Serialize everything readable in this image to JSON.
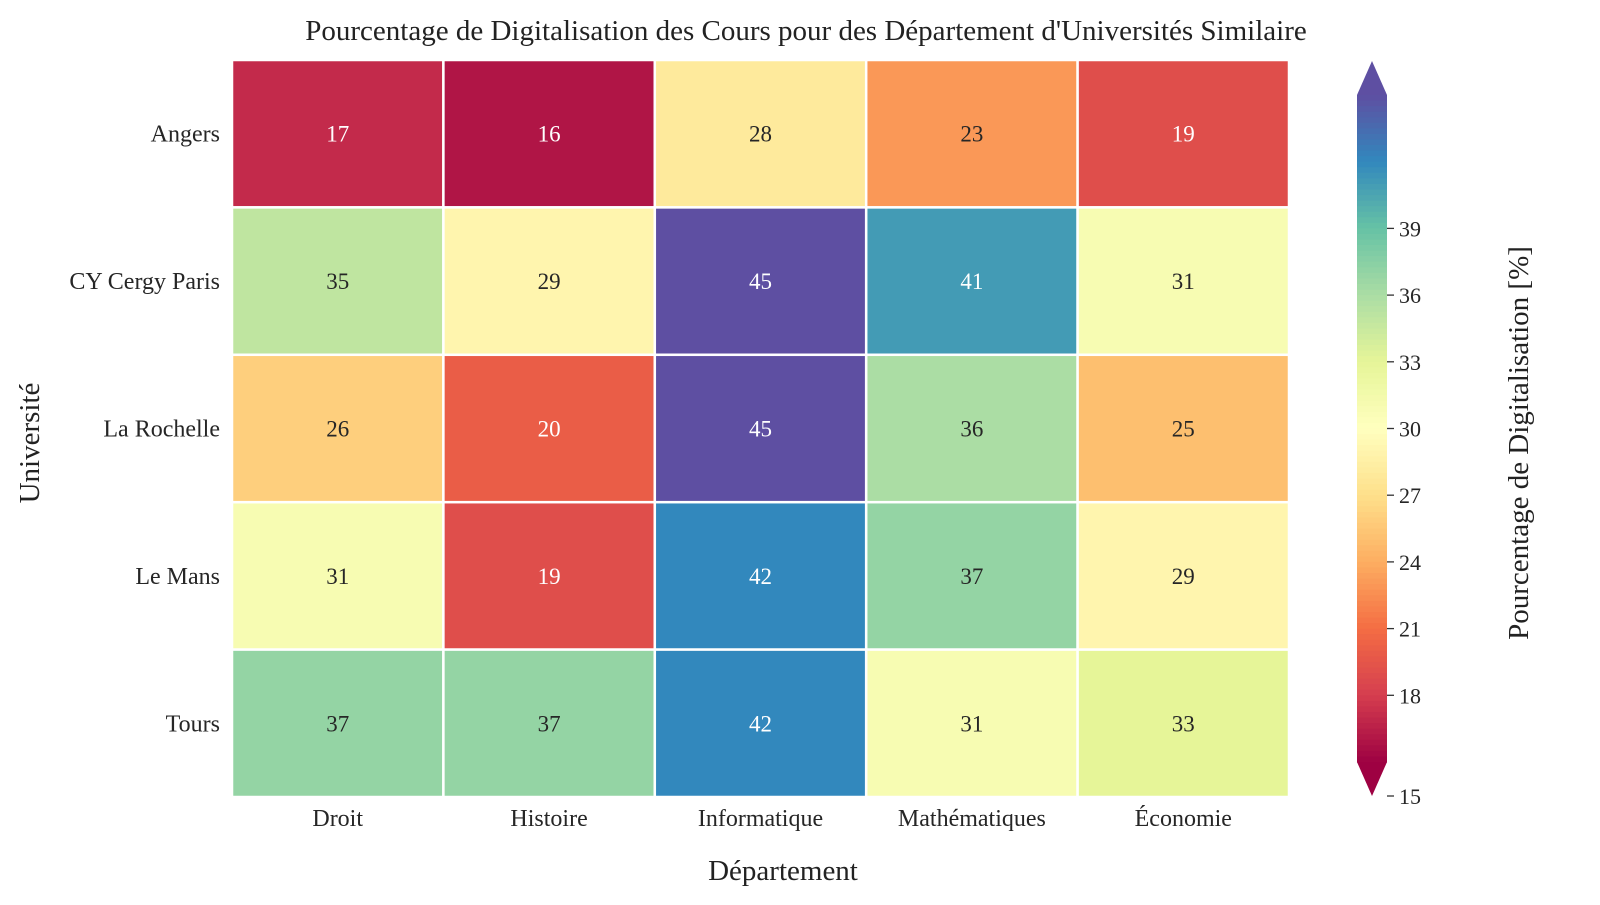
{
  "chart_data": {
    "type": "heatmap",
    "title": "Pourcentage de Digitalisation des Cours pour des Département d'Universités Similaire",
    "xlabel": "Département",
    "ylabel": "Université",
    "x_categories": [
      "Droit",
      "Histoire",
      "Informatique",
      "Mathématiques",
      "Économie"
    ],
    "y_categories": [
      "Angers",
      "CY Cergy Paris",
      "La Rochelle",
      "Le Mans",
      "Tours"
    ],
    "values": [
      [
        17,
        16,
        28,
        23,
        19
      ],
      [
        35,
        29,
        45,
        41,
        31
      ],
      [
        26,
        20,
        45,
        36,
        25
      ],
      [
        31,
        19,
        42,
        37,
        29
      ],
      [
        37,
        37,
        42,
        31,
        33
      ]
    ],
    "colorbar": {
      "label": "Pourcentage de Digitalisation [%]",
      "range": [
        15,
        45
      ],
      "ticks": [
        15,
        18,
        21,
        24,
        27,
        30,
        33,
        36,
        39
      ],
      "extend": "both",
      "colormap": "Spectral"
    },
    "annotations": "values shown in each cell",
    "grid": false
  }
}
